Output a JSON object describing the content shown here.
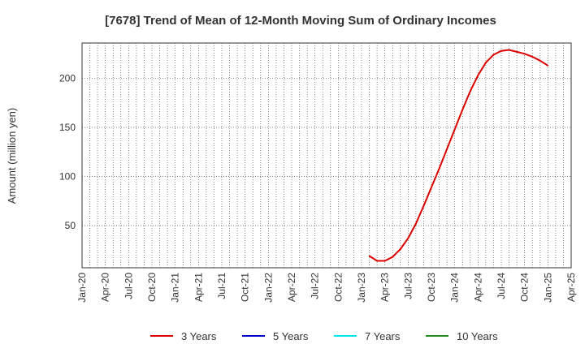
{
  "chart_data": {
    "type": "line",
    "title": "[7678]  Trend of Mean of 12-Month Moving Sum of Ordinary Incomes",
    "xlabel": "",
    "ylabel": "Amount (million yen)",
    "x_tick_labels": [
      "Jan-20",
      "Apr-20",
      "Jul-20",
      "Oct-20",
      "Jan-21",
      "Apr-21",
      "Jul-21",
      "Oct-21",
      "Jan-22",
      "Apr-22",
      "Jul-22",
      "Oct-22",
      "Jan-23",
      "Apr-23",
      "Jul-23",
      "Oct-23",
      "Jan-24",
      "Apr-24",
      "Jul-24",
      "Oct-24",
      "Jan-25",
      "Apr-25"
    ],
    "y_ticks": [
      50,
      100,
      150,
      200
    ],
    "ylim": [
      7,
      236
    ],
    "grid": true,
    "legend_position": "bottom",
    "colors": {
      "3 Years": "#dd0000",
      "5 Years": "#0000cc",
      "7 Years": "#00e5ee",
      "10 Years": "#228b22"
    },
    "series": [
      {
        "name": "3 Years",
        "x": [
          "Feb-23",
          "Mar-23",
          "Apr-23",
          "May-23",
          "Jun-23",
          "Jul-23",
          "Aug-23",
          "Sep-23",
          "Oct-23",
          "Nov-23",
          "Dec-23",
          "Jan-24",
          "Feb-24",
          "Mar-24",
          "Apr-24",
          "May-24",
          "Jun-24",
          "Jul-24",
          "Aug-24",
          "Sep-24",
          "Oct-24",
          "Nov-24",
          "Dec-24",
          "Jan-25"
        ],
        "values": [
          19,
          14,
          14,
          18,
          26,
          37,
          52,
          70,
          89,
          108,
          128,
          148,
          168,
          187,
          203,
          216,
          224,
          228,
          229,
          227,
          225,
          222,
          218,
          213
        ]
      },
      {
        "name": "5 Years",
        "x": [],
        "values": []
      },
      {
        "name": "7 Years",
        "x": [],
        "values": []
      },
      {
        "name": "10 Years",
        "x": [],
        "values": []
      }
    ]
  }
}
